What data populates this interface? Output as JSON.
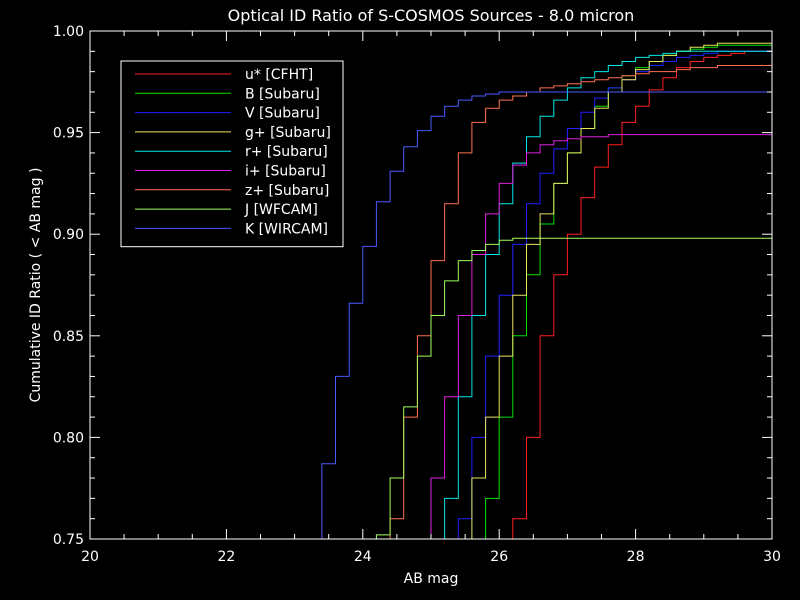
{
  "chart_data": {
    "type": "line",
    "title": "Optical ID Ratio of S-COSMOS Sources - 8.0 micron",
    "xlabel": "AB mag",
    "ylabel": "Cumulative ID Ratio ( < AB mag )",
    "xlim": [
      20,
      30
    ],
    "ylim": [
      0.75,
      1.0
    ],
    "xticks": [
      "20",
      "22",
      "24",
      "26",
      "28",
      "30"
    ],
    "yticks": [
      "0.75",
      "0.80",
      "0.85",
      "0.90",
      "0.95",
      "1.00"
    ],
    "legend_position": "top-left",
    "series": [
      {
        "name": "u* [CFHT]",
        "color": "#ff2020",
        "x": [
          26.2,
          26.4,
          26.6,
          26.8,
          27.0,
          27.2,
          27.4,
          27.6,
          27.8,
          28.0,
          28.2,
          28.4,
          28.6,
          28.8,
          29.0,
          29.2,
          29.4,
          29.6,
          29.8,
          30.0
        ],
        "y": [
          0.76,
          0.8,
          0.85,
          0.88,
          0.9,
          0.918,
          0.933,
          0.944,
          0.955,
          0.963,
          0.971,
          0.977,
          0.982,
          0.985,
          0.987,
          0.988,
          0.989,
          0.99,
          0.99,
          0.99
        ]
      },
      {
        "name": "B [Subaru]",
        "color": "#00e000",
        "x": [
          25.8,
          26.0,
          26.2,
          26.4,
          26.6,
          26.8,
          27.0,
          27.2,
          27.4,
          27.6,
          27.8,
          28.0,
          28.2,
          28.4,
          28.6,
          28.8,
          29.0,
          29.2,
          29.4,
          29.6,
          29.8,
          30.0
        ],
        "y": [
          0.77,
          0.81,
          0.85,
          0.88,
          0.905,
          0.925,
          0.94,
          0.952,
          0.963,
          0.972,
          0.978,
          0.982,
          0.985,
          0.988,
          0.99,
          0.991,
          0.992,
          0.993,
          0.993,
          0.993,
          0.993,
          0.993
        ]
      },
      {
        "name": "V [Subaru]",
        "color": "#2020ff",
        "x": [
          25.4,
          25.6,
          25.8,
          26.0,
          26.2,
          26.4,
          26.6,
          26.8,
          27.0,
          27.2,
          27.4,
          27.6,
          27.8,
          28.0,
          28.2,
          28.4,
          28.6,
          28.8,
          29.0,
          29.2,
          29.4,
          29.6,
          29.8,
          30.0
        ],
        "y": [
          0.76,
          0.8,
          0.84,
          0.87,
          0.895,
          0.915,
          0.93,
          0.942,
          0.952,
          0.96,
          0.967,
          0.972,
          0.976,
          0.98,
          0.983,
          0.985,
          0.987,
          0.988,
          0.989,
          0.99,
          0.99,
          0.99,
          0.99,
          0.99
        ]
      },
      {
        "name": "g+ [Subaru]",
        "color": "#e8e860",
        "x": [
          25.4,
          25.6,
          25.8,
          26.0,
          26.2,
          26.4,
          26.6,
          26.8,
          27.0,
          27.2,
          27.4,
          27.6,
          27.8,
          28.0,
          28.2,
          28.4,
          28.6,
          28.8,
          29.0,
          29.2,
          29.4,
          29.6,
          29.8,
          30.0
        ],
        "y": [
          0.75,
          0.78,
          0.81,
          0.84,
          0.87,
          0.895,
          0.91,
          0.925,
          0.94,
          0.952,
          0.962,
          0.97,
          0.976,
          0.981,
          0.985,
          0.988,
          0.99,
          0.992,
          0.993,
          0.994,
          0.994,
          0.994,
          0.994,
          0.994
        ]
      },
      {
        "name": "r+ [Subaru]",
        "color": "#00e8e8",
        "x": [
          25.2,
          25.4,
          25.6,
          25.8,
          26.0,
          26.2,
          26.4,
          26.6,
          26.8,
          27.0,
          27.2,
          27.4,
          27.6,
          27.8,
          28.0,
          28.2,
          28.4,
          28.6,
          28.8,
          29.0,
          29.2,
          29.4,
          29.6,
          29.8,
          30.0
        ],
        "y": [
          0.77,
          0.82,
          0.86,
          0.89,
          0.915,
          0.935,
          0.948,
          0.958,
          0.966,
          0.972,
          0.977,
          0.98,
          0.983,
          0.985,
          0.987,
          0.988,
          0.989,
          0.99,
          0.99,
          0.99,
          0.99,
          0.99,
          0.99,
          0.99,
          0.99
        ]
      },
      {
        "name": "i+ [Subaru]",
        "color": "#e020e0",
        "x": [
          25.0,
          25.2,
          25.4,
          25.6,
          25.8,
          26.0,
          26.2,
          26.4,
          26.6,
          26.8,
          27.0,
          27.2,
          27.4,
          27.6,
          27.8,
          28.0,
          28.2,
          28.4,
          28.6,
          28.8,
          29.0,
          29.2,
          29.4,
          29.6,
          29.8,
          30.0
        ],
        "y": [
          0.78,
          0.82,
          0.86,
          0.89,
          0.91,
          0.925,
          0.934,
          0.94,
          0.944,
          0.946,
          0.947,
          0.948,
          0.948,
          0.949,
          0.949,
          0.949,
          0.949,
          0.949,
          0.949,
          0.949,
          0.949,
          0.949,
          0.949,
          0.949,
          0.949,
          0.95
        ]
      },
      {
        "name": "z+ [Subaru]",
        "color": "#ff7050",
        "x": [
          24.4,
          24.6,
          24.8,
          25.0,
          25.2,
          25.4,
          25.6,
          25.8,
          26.0,
          26.2,
          26.4,
          26.6,
          26.8,
          27.0,
          27.2,
          27.4,
          27.6,
          27.8,
          28.0,
          28.2,
          28.4,
          28.6,
          28.8,
          29.0,
          29.2,
          29.4,
          29.6,
          29.8,
          30.0
        ],
        "y": [
          0.76,
          0.81,
          0.85,
          0.887,
          0.915,
          0.94,
          0.955,
          0.962,
          0.966,
          0.968,
          0.97,
          0.972,
          0.973,
          0.974,
          0.975,
          0.976,
          0.977,
          0.978,
          0.979,
          0.98,
          0.98,
          0.981,
          0.982,
          0.982,
          0.983,
          0.983,
          0.983,
          0.983,
          0.983
        ]
      },
      {
        "name": "J [WFCAM]",
        "color": "#a0ff60",
        "x": [
          24.2,
          24.4,
          24.6,
          24.8,
          25.0,
          25.2,
          25.4,
          25.6,
          25.8,
          26.0,
          26.2,
          26.4,
          26.6,
          26.8,
          27.0,
          27.2,
          27.4,
          27.6,
          27.8,
          28.0,
          28.2,
          28.4,
          28.6,
          28.8,
          29.0,
          29.2,
          29.4,
          29.6,
          29.8,
          30.0
        ],
        "y": [
          0.752,
          0.78,
          0.815,
          0.84,
          0.86,
          0.877,
          0.887,
          0.892,
          0.895,
          0.897,
          0.898,
          0.898,
          0.898,
          0.898,
          0.898,
          0.898,
          0.898,
          0.898,
          0.898,
          0.898,
          0.898,
          0.898,
          0.898,
          0.898,
          0.898,
          0.898,
          0.898,
          0.898,
          0.898,
          0.898
        ]
      },
      {
        "name": "K [WIRCAM]",
        "color": "#4a5aff",
        "x": [
          23.4,
          23.6,
          23.8,
          24.0,
          24.2,
          24.4,
          24.6,
          24.8,
          25.0,
          25.2,
          25.4,
          25.6,
          25.8,
          26.0,
          26.2,
          26.4,
          26.6,
          26.8,
          27.0,
          27.2,
          27.4,
          27.6,
          27.8,
          28.0,
          28.2,
          28.4,
          28.6,
          28.8,
          29.0,
          29.2,
          29.4,
          29.6,
          29.8,
          30.0
        ],
        "y": [
          0.787,
          0.83,
          0.866,
          0.894,
          0.916,
          0.931,
          0.943,
          0.951,
          0.958,
          0.963,
          0.966,
          0.968,
          0.969,
          0.97,
          0.97,
          0.97,
          0.97,
          0.97,
          0.97,
          0.97,
          0.97,
          0.97,
          0.97,
          0.97,
          0.97,
          0.97,
          0.97,
          0.97,
          0.97,
          0.97,
          0.97,
          0.97,
          0.97,
          0.97
        ]
      }
    ]
  }
}
